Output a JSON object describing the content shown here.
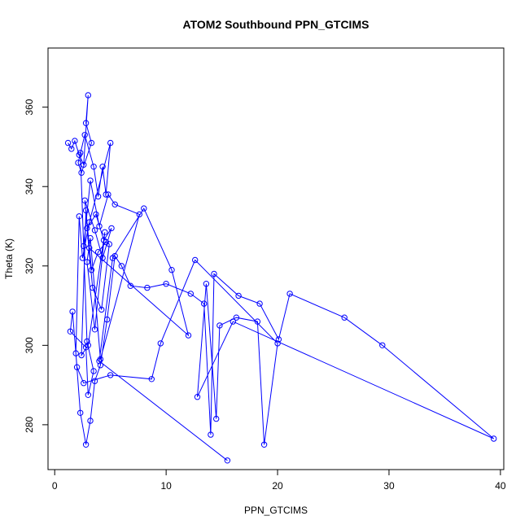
{
  "chart_data": {
    "type": "line",
    "title": "ATOM2 Southbound PPN_GTCIMS",
    "xlabel": "PPN_GTCIMS",
    "ylabel": "Theta (K)",
    "xlim": [
      -0.6,
      40.3
    ],
    "ylim": [
      268.7,
      374.9
    ],
    "xticks": [
      0,
      10,
      20,
      30,
      40
    ],
    "yticks": [
      280,
      300,
      320,
      340,
      360
    ],
    "grid": false,
    "legend": "none",
    "series_color": "#0000ff",
    "marker": "open-circle",
    "series": [
      {
        "x": [
          1.2,
          1.5,
          1.8,
          2.2,
          2.6,
          3.0,
          2.8,
          3.3,
          2.4,
          2.1,
          2.7,
          3.5,
          3.9,
          4.3,
          4.6,
          5.0,
          3.1,
          2.5,
          2.2,
          1.9,
          2.3,
          2.8,
          3.2,
          3.6,
          4.1,
          4.7,
          5.4,
          6.0,
          6.8,
          8.3,
          10.0,
          12.2,
          13.4,
          14.0,
          14.3,
          16.5,
          18.4,
          20.1,
          21.1,
          26.0,
          29.4,
          39.4,
          16.0,
          12.8,
          13.6,
          14.5,
          14.8,
          16.3,
          18.2,
          18.8,
          20.0,
          12.6,
          9.5,
          8.7,
          5.0,
          2.6,
          2.0,
          1.6,
          1.4,
          2.8,
          3.0,
          3.5,
          2.9,
          2.3,
          2.6,
          3.2,
          4.0,
          4.8,
          5.4,
          7.6,
          4.1,
          3.2,
          2.9,
          3.6,
          4.5,
          3.0,
          2.4,
          2.8,
          3.3,
          3.9,
          4.6,
          4.9,
          4.2,
          3.4,
          2.9,
          3.7,
          4.4,
          5.1,
          4.3,
          3.6,
          2.7,
          3.1,
          12.0,
          10.5,
          8.0,
          5.2,
          4.0,
          15.5
        ]
      }
    ],
    "y_series": [
      {
        "y": [
          351.0,
          349.5,
          351.5,
          348.0,
          345.5,
          363.0,
          356.0,
          351.0,
          343.5,
          346.0,
          353.0,
          345.0,
          337.5,
          345.0,
          338.0,
          351.0,
          331.0,
          322.0,
          332.5,
          298.0,
          283.0,
          275.0,
          281.0,
          291.0,
          295.0,
          306.5,
          322.5,
          320.0,
          315.0,
          314.5,
          315.5,
          313.0,
          310.5,
          277.5,
          318.0,
          312.5,
          310.5,
          301.5,
          313.0,
          307.0,
          300.0,
          276.5,
          306.0,
          287.0,
          315.5,
          281.5,
          305.0,
          307.0,
          306.0,
          275.0,
          300.5,
          321.5,
          300.5,
          291.5,
          292.5,
          290.5,
          294.5,
          308.5,
          303.5,
          299.5,
          287.5,
          293.5,
          301.0,
          348.5,
          325.0,
          341.5,
          330.0,
          338.0,
          335.5,
          333.0,
          296.5,
          327.0,
          321.0,
          304.0,
          328.5,
          300.0,
          297.5,
          334.0,
          319.0,
          323.5,
          326.0,
          325.5,
          309.0,
          314.5,
          329.5,
          333.0,
          326.5,
          329.5,
          322.0,
          329.0,
          336.5,
          324.5,
          302.5,
          319.0,
          334.5,
          322.0,
          296.0,
          271.0
        ]
      }
    ]
  }
}
